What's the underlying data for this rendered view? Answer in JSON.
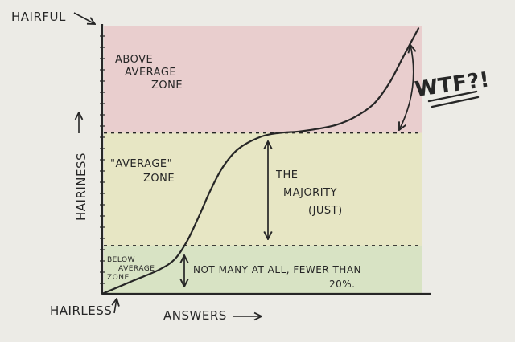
{
  "chart_data": {
    "type": "line",
    "title": "",
    "xlabel": "ANSWERS",
    "ylabel": "HAIRINESS",
    "y_top_label": "HAIRFUL",
    "y_bottom_label": "HAIRLESS",
    "ylim": [
      0,
      100
    ],
    "xlim": [
      0,
      100
    ],
    "grid": false,
    "zones": [
      {
        "name": "above",
        "label_lines": [
          "ABOVE",
          "AVERAGE",
          "ZONE"
        ],
        "from": 60,
        "to": 100,
        "color": "#e9c9c9"
      },
      {
        "name": "average",
        "label_lines": [
          "\"AVERAGE\"",
          "ZONE"
        ],
        "from": 18,
        "to": 60,
        "color": "#e6e5bd"
      },
      {
        "name": "below",
        "label_lines": [
          "BELOW",
          "AVERAGE",
          "ZONE"
        ],
        "from": 0,
        "to": 18,
        "color": "#d5e2bd"
      }
    ],
    "thresholds": [
      60,
      18
    ],
    "curve": {
      "x": [
        0,
        10,
        18,
        23,
        27,
        31,
        34,
        38,
        43,
        50,
        56,
        62,
        68,
        74,
        80,
        86,
        91,
        95,
        100
      ],
      "y": [
        0,
        5,
        9,
        13,
        20,
        30,
        38,
        47,
        54,
        58.5,
        60,
        60.5,
        61.5,
        63,
        66,
        71,
        79,
        88,
        99
      ]
    },
    "annotations": [
      {
        "name": "majority",
        "lines": [
          "THE",
          "MAJORITY",
          "(JUST)"
        ]
      },
      {
        "name": "few",
        "lines": [
          "NOT MANY AT ALL, FEWER THAN",
          "20%."
        ]
      },
      {
        "name": "wtf",
        "lines": [
          "WTF?!"
        ]
      }
    ]
  }
}
